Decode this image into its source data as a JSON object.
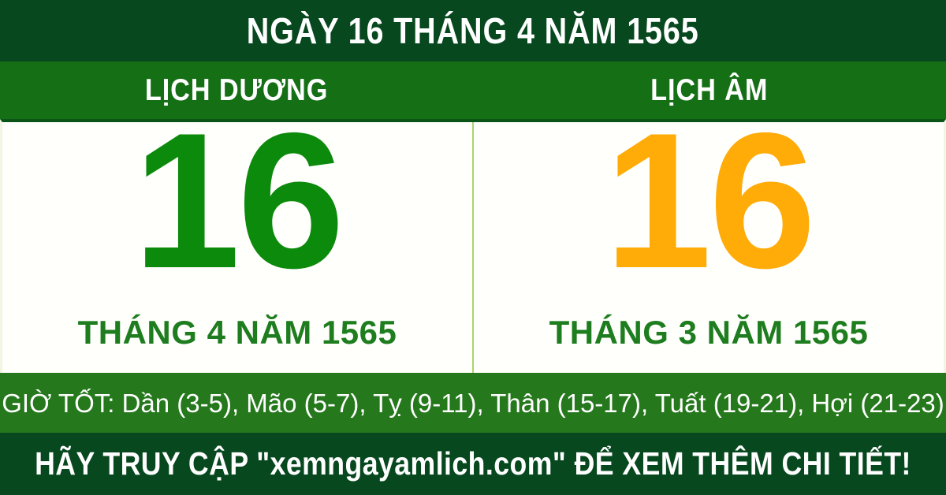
{
  "header": {
    "title": "NGÀY 16 THÁNG 4 NĂM 1565"
  },
  "columns": {
    "solar": {
      "header": "LỊCH DƯƠNG",
      "day": "16",
      "month_year": "THÁNG 4 NĂM 1565"
    },
    "lunar": {
      "header": "LỊCH ÂM",
      "day": "16",
      "month_year": "THÁNG 3 NĂM 1565"
    }
  },
  "good_hours": {
    "label": "GIỜ TỐT: ",
    "list": "Dần (3-5), Mão (5-7), Tỵ (9-11), Thân (15-17), Tuất (19-21), Hợi (21-23)"
  },
  "footer": {
    "cta_prefix": "HÃY TRUY CẬP \"",
    "website": "xemngayamlich.com",
    "cta_suffix": "\" ĐỂ XEM THÊM CHI TIẾT!"
  },
  "colors": {
    "dark_green": "#07481f",
    "bright_green": "#146f15",
    "hours_green": "#25781c",
    "solar_day_green": "#0c8a0c",
    "lunar_day_orange": "#ffab08",
    "month_green": "#1e7d1e",
    "divider_light_green": "#a8d46f",
    "panel_white": "#fffffc"
  }
}
